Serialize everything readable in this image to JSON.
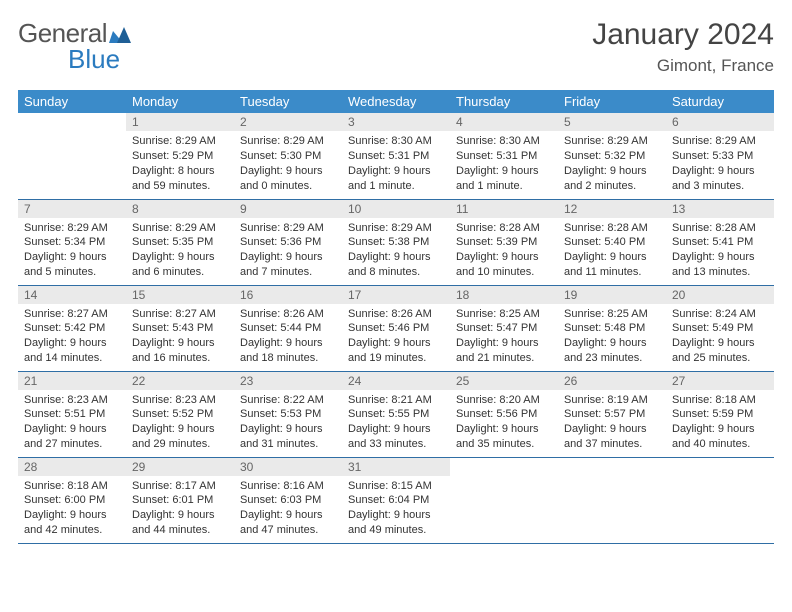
{
  "brand": {
    "part1": "General",
    "part2": "Blue"
  },
  "title": "January 2024",
  "location": "Gimont, France",
  "colors": {
    "header_bg": "#3b8bc9",
    "header_text": "#ffffff",
    "daynum_bg": "#eaeaea",
    "daynum_text": "#666666",
    "body_text": "#333333",
    "rule": "#2f6ea5",
    "brand_gray": "#555555",
    "brand_blue": "#2b7bbf",
    "page_bg": "#ffffff"
  },
  "typography": {
    "title_fontsize": 30,
    "location_fontsize": 17,
    "th_fontsize": 13,
    "cell_fontsize": 11
  },
  "weekday_labels": [
    "Sunday",
    "Monday",
    "Tuesday",
    "Wednesday",
    "Thursday",
    "Friday",
    "Saturday"
  ],
  "weeks": [
    [
      null,
      {
        "n": "1",
        "sunrise": "8:29 AM",
        "sunset": "5:29 PM",
        "daylight": "8 hours and 59 minutes."
      },
      {
        "n": "2",
        "sunrise": "8:29 AM",
        "sunset": "5:30 PM",
        "daylight": "9 hours and 0 minutes."
      },
      {
        "n": "3",
        "sunrise": "8:30 AM",
        "sunset": "5:31 PM",
        "daylight": "9 hours and 1 minute."
      },
      {
        "n": "4",
        "sunrise": "8:30 AM",
        "sunset": "5:31 PM",
        "daylight": "9 hours and 1 minute."
      },
      {
        "n": "5",
        "sunrise": "8:29 AM",
        "sunset": "5:32 PM",
        "daylight": "9 hours and 2 minutes."
      },
      {
        "n": "6",
        "sunrise": "8:29 AM",
        "sunset": "5:33 PM",
        "daylight": "9 hours and 3 minutes."
      }
    ],
    [
      {
        "n": "7",
        "sunrise": "8:29 AM",
        "sunset": "5:34 PM",
        "daylight": "9 hours and 5 minutes."
      },
      {
        "n": "8",
        "sunrise": "8:29 AM",
        "sunset": "5:35 PM",
        "daylight": "9 hours and 6 minutes."
      },
      {
        "n": "9",
        "sunrise": "8:29 AM",
        "sunset": "5:36 PM",
        "daylight": "9 hours and 7 minutes."
      },
      {
        "n": "10",
        "sunrise": "8:29 AM",
        "sunset": "5:38 PM",
        "daylight": "9 hours and 8 minutes."
      },
      {
        "n": "11",
        "sunrise": "8:28 AM",
        "sunset": "5:39 PM",
        "daylight": "9 hours and 10 minutes."
      },
      {
        "n": "12",
        "sunrise": "8:28 AM",
        "sunset": "5:40 PM",
        "daylight": "9 hours and 11 minutes."
      },
      {
        "n": "13",
        "sunrise": "8:28 AM",
        "sunset": "5:41 PM",
        "daylight": "9 hours and 13 minutes."
      }
    ],
    [
      {
        "n": "14",
        "sunrise": "8:27 AM",
        "sunset": "5:42 PM",
        "daylight": "9 hours and 14 minutes."
      },
      {
        "n": "15",
        "sunrise": "8:27 AM",
        "sunset": "5:43 PM",
        "daylight": "9 hours and 16 minutes."
      },
      {
        "n": "16",
        "sunrise": "8:26 AM",
        "sunset": "5:44 PM",
        "daylight": "9 hours and 18 minutes."
      },
      {
        "n": "17",
        "sunrise": "8:26 AM",
        "sunset": "5:46 PM",
        "daylight": "9 hours and 19 minutes."
      },
      {
        "n": "18",
        "sunrise": "8:25 AM",
        "sunset": "5:47 PM",
        "daylight": "9 hours and 21 minutes."
      },
      {
        "n": "19",
        "sunrise": "8:25 AM",
        "sunset": "5:48 PM",
        "daylight": "9 hours and 23 minutes."
      },
      {
        "n": "20",
        "sunrise": "8:24 AM",
        "sunset": "5:49 PM",
        "daylight": "9 hours and 25 minutes."
      }
    ],
    [
      {
        "n": "21",
        "sunrise": "8:23 AM",
        "sunset": "5:51 PM",
        "daylight": "9 hours and 27 minutes."
      },
      {
        "n": "22",
        "sunrise": "8:23 AM",
        "sunset": "5:52 PM",
        "daylight": "9 hours and 29 minutes."
      },
      {
        "n": "23",
        "sunrise": "8:22 AM",
        "sunset": "5:53 PM",
        "daylight": "9 hours and 31 minutes."
      },
      {
        "n": "24",
        "sunrise": "8:21 AM",
        "sunset": "5:55 PM",
        "daylight": "9 hours and 33 minutes."
      },
      {
        "n": "25",
        "sunrise": "8:20 AM",
        "sunset": "5:56 PM",
        "daylight": "9 hours and 35 minutes."
      },
      {
        "n": "26",
        "sunrise": "8:19 AM",
        "sunset": "5:57 PM",
        "daylight": "9 hours and 37 minutes."
      },
      {
        "n": "27",
        "sunrise": "8:18 AM",
        "sunset": "5:59 PM",
        "daylight": "9 hours and 40 minutes."
      }
    ],
    [
      {
        "n": "28",
        "sunrise": "8:18 AM",
        "sunset": "6:00 PM",
        "daylight": "9 hours and 42 minutes."
      },
      {
        "n": "29",
        "sunrise": "8:17 AM",
        "sunset": "6:01 PM",
        "daylight": "9 hours and 44 minutes."
      },
      {
        "n": "30",
        "sunrise": "8:16 AM",
        "sunset": "6:03 PM",
        "daylight": "9 hours and 47 minutes."
      },
      {
        "n": "31",
        "sunrise": "8:15 AM",
        "sunset": "6:04 PM",
        "daylight": "9 hours and 49 minutes."
      },
      null,
      null,
      null
    ]
  ],
  "labels": {
    "sunrise": "Sunrise:",
    "sunset": "Sunset:",
    "daylight": "Daylight:"
  }
}
